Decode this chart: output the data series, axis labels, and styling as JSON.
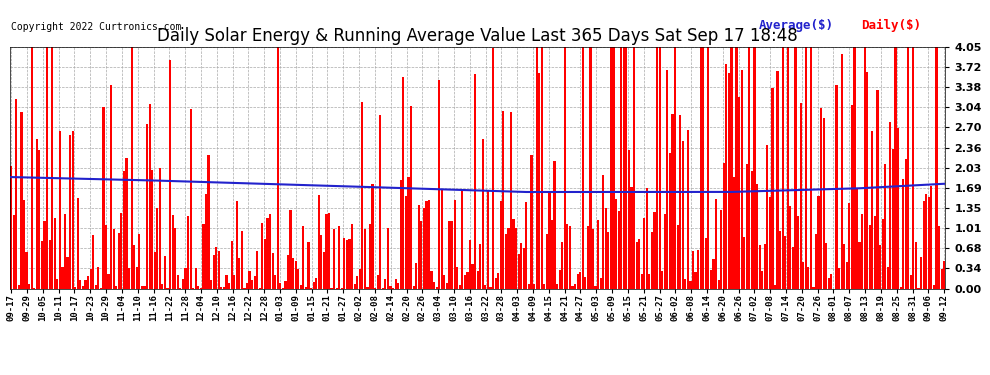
{
  "title": "Daily Solar Energy & Running Average Value Last 365 Days Sat Sep 17 18:48",
  "copyright": "Copyright 2022 Curtronics.com",
  "ylabel_right_ticks": [
    0.0,
    0.34,
    0.68,
    1.01,
    1.35,
    1.69,
    2.03,
    2.36,
    2.7,
    3.04,
    3.38,
    3.72,
    4.05
  ],
  "ymax": 4.05,
  "ymin": 0.0,
  "bar_color": "#ff0000",
  "avg_line_color": "#2222cc",
  "background_color": "#ffffff",
  "grid_color": "#aaaaaa",
  "title_fontsize": 12,
  "copyright_fontsize": 7,
  "legend_avg": "Average($)",
  "legend_daily": "Daily($)",
  "legend_fontsize": 9,
  "n_days": 365,
  "xtick_labels": [
    "09-17",
    "09-29",
    "10-05",
    "10-11",
    "10-17",
    "10-23",
    "10-29",
    "11-04",
    "11-10",
    "11-16",
    "11-22",
    "11-28",
    "12-04",
    "12-10",
    "12-16",
    "12-22",
    "12-28",
    "01-03",
    "01-09",
    "01-15",
    "01-21",
    "01-27",
    "02-02",
    "02-08",
    "02-14",
    "02-20",
    "02-26",
    "03-04",
    "03-10",
    "03-16",
    "03-22",
    "03-28",
    "04-03",
    "04-09",
    "04-15",
    "04-21",
    "04-27",
    "05-03",
    "05-09",
    "05-15",
    "05-21",
    "05-27",
    "06-02",
    "06-08",
    "06-14",
    "06-20",
    "06-26",
    "07-02",
    "07-08",
    "07-14",
    "07-20",
    "07-26",
    "08-01",
    "08-07",
    "08-13",
    "08-19",
    "08-25",
    "08-31",
    "09-06",
    "09-12"
  ]
}
